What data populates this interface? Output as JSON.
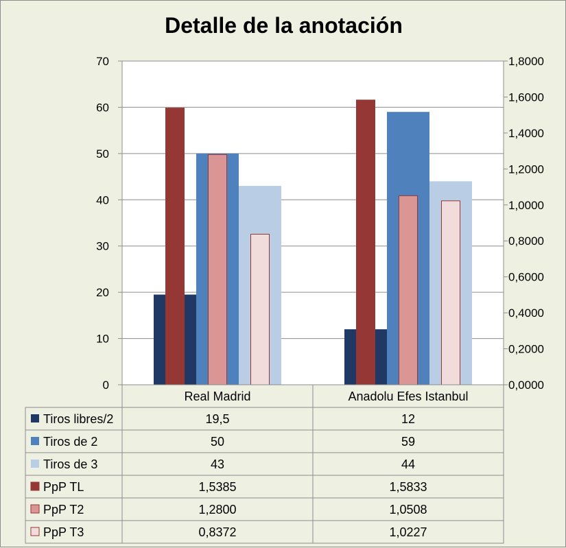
{
  "chart_data": {
    "title": "Detalle de la anotación",
    "type": "bar",
    "categories": [
      "Real Madrid",
      "Anadolu Efes Istanbul"
    ],
    "y_left": {
      "ticks": [
        "0",
        "10",
        "20",
        "30",
        "40",
        "50",
        "60",
        "70"
      ],
      "min": 0,
      "max": 70
    },
    "y_right": {
      "ticks": [
        "0,0000",
        "0,2000",
        "0,4000",
        "0,6000",
        "0,8000",
        "1,0000",
        "1,2000",
        "1,4000",
        "1,6000",
        "1,8000"
      ],
      "min": 0,
      "max": 1.8
    },
    "grid": true,
    "legend": "data-table",
    "series": [
      {
        "name": "Tiros libres/2",
        "axis": "left",
        "values": [
          19.5,
          12
        ],
        "labels": [
          "19,5",
          "12"
        ],
        "color": "#1f3864"
      },
      {
        "name": "Tiros de 2",
        "axis": "left",
        "values": [
          50,
          59
        ],
        "labels": [
          "50",
          "59"
        ],
        "color": "#4f81bd"
      },
      {
        "name": "Tiros de 3",
        "axis": "left",
        "values": [
          43,
          44
        ],
        "labels": [
          "43",
          "44"
        ],
        "color": "#b9cde5"
      },
      {
        "name": "PpP TL",
        "axis": "right",
        "values": [
          1.5385,
          1.5833
        ],
        "labels": [
          "1,5385",
          "1,5833"
        ],
        "color": "#953735"
      },
      {
        "name": "PpP T2",
        "axis": "right",
        "values": [
          1.28,
          1.0508
        ],
        "labels": [
          "1,2800",
          "1,0508"
        ],
        "color": "#d99694"
      },
      {
        "name": "PpP T3",
        "axis": "right",
        "values": [
          0.8372,
          1.0227
        ],
        "labels": [
          "0,8372",
          "1,0227"
        ],
        "color": "#f2dcdb"
      }
    ]
  }
}
